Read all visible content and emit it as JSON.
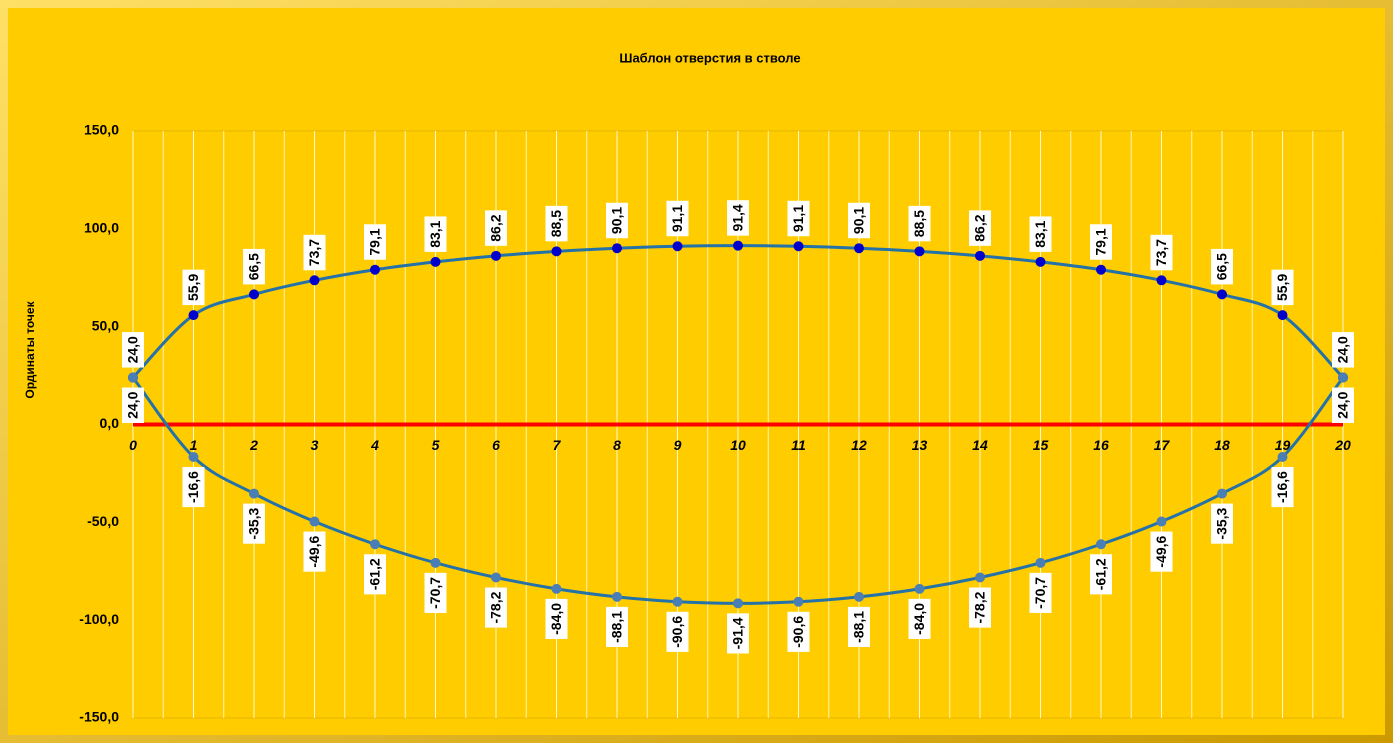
{
  "chart_data": {
    "type": "line",
    "title": "Шаблон отверстия в стволе",
    "y_label": "Ординаты точек",
    "x": [
      0,
      1,
      2,
      3,
      4,
      5,
      6,
      7,
      8,
      9,
      10,
      11,
      12,
      13,
      14,
      15,
      16,
      17,
      18,
      19,
      20
    ],
    "xlim": [
      0,
      20
    ],
    "xticks": [
      0,
      1,
      2,
      3,
      4,
      5,
      6,
      7,
      8,
      9,
      10,
      11,
      12,
      13,
      14,
      15,
      16,
      17,
      18,
      19,
      20
    ],
    "ylim": [
      -150,
      150
    ],
    "yticks": [
      {
        "value": -150,
        "label": "-150,0"
      },
      {
        "value": -100,
        "label": "-100,0"
      },
      {
        "value": -50,
        "label": "-50,0"
      },
      {
        "value": 0,
        "label": "0,0"
      },
      {
        "value": 50,
        "label": "50,0"
      },
      {
        "value": 100,
        "label": "100,0"
      },
      {
        "value": 150,
        "label": "150,0"
      }
    ],
    "grid": true,
    "zero_line_color": "#ff0000",
    "background": "#ffcc00",
    "series": [
      {
        "color": "#2472a8",
        "marker_color": "#0000cc",
        "label_position": "above",
        "values": [
          24.0,
          55.9,
          66.5,
          73.7,
          79.1,
          83.1,
          86.2,
          88.5,
          90.1,
          91.1,
          91.4,
          91.1,
          90.1,
          88.5,
          86.2,
          83.1,
          79.1,
          73.7,
          66.5,
          55.9,
          24.0
        ],
        "value_labels": [
          "24,0",
          "55,9",
          "66,5",
          "73,7",
          "79,1",
          "83,1",
          "86,2",
          "88,5",
          "90,1",
          "91,1",
          "91,4",
          "91,1",
          "90,1",
          "88,5",
          "86,2",
          "83,1",
          "79,1",
          "73,7",
          "66,5",
          "55,9",
          "24,0"
        ]
      },
      {
        "color": "#2472a8",
        "marker_color": "#4a7fb5",
        "label_position": "below",
        "values": [
          24.0,
          -16.6,
          -35.3,
          -49.6,
          -61.2,
          -70.7,
          -78.2,
          -84.0,
          -88.1,
          -90.6,
          -91.4,
          -90.6,
          -88.1,
          -84.0,
          -78.2,
          -70.7,
          -61.2,
          -49.6,
          -35.3,
          -16.6,
          24.0
        ],
        "value_labels": [
          "24,0",
          "-16,6",
          "-35,3",
          "-49,6",
          "-61,2",
          "-70,7",
          "-78,2",
          "-84,0",
          "-88,1",
          "-90,6",
          "-91,4",
          "-90,6",
          "-88,1",
          "-84,0",
          "-78,2",
          "-70,7",
          "-61,2",
          "-49,6",
          "-35,3",
          "-16,6",
          "24,0"
        ]
      }
    ]
  }
}
